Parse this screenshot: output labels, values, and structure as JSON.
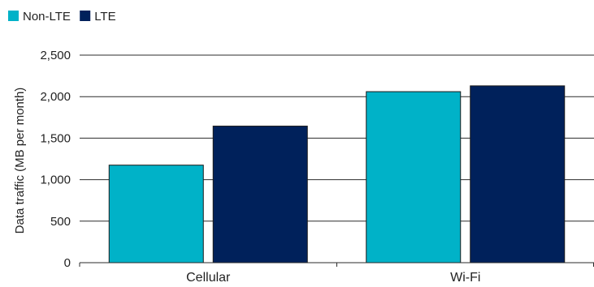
{
  "chart_data": {
    "type": "bar",
    "categories": [
      "Cellular",
      "Wi-Fi"
    ],
    "series": [
      {
        "name": "Non-LTE",
        "color": "#00B2C8",
        "values": [
          1175,
          2060
        ]
      },
      {
        "name": "LTE",
        "color": "#00215B",
        "values": [
          1645,
          2130
        ]
      }
    ],
    "xlabel": "",
    "ylabel": "Data traffic (MB per month)",
    "ylim": [
      0,
      2500
    ],
    "yticks": [
      0,
      500,
      1000,
      1500,
      2000,
      2500
    ],
    "ytick_labels": [
      "0",
      "500",
      "1,000",
      "1,500",
      "2,000",
      "2,500"
    ],
    "grid": true,
    "legend_position": "top-left"
  }
}
